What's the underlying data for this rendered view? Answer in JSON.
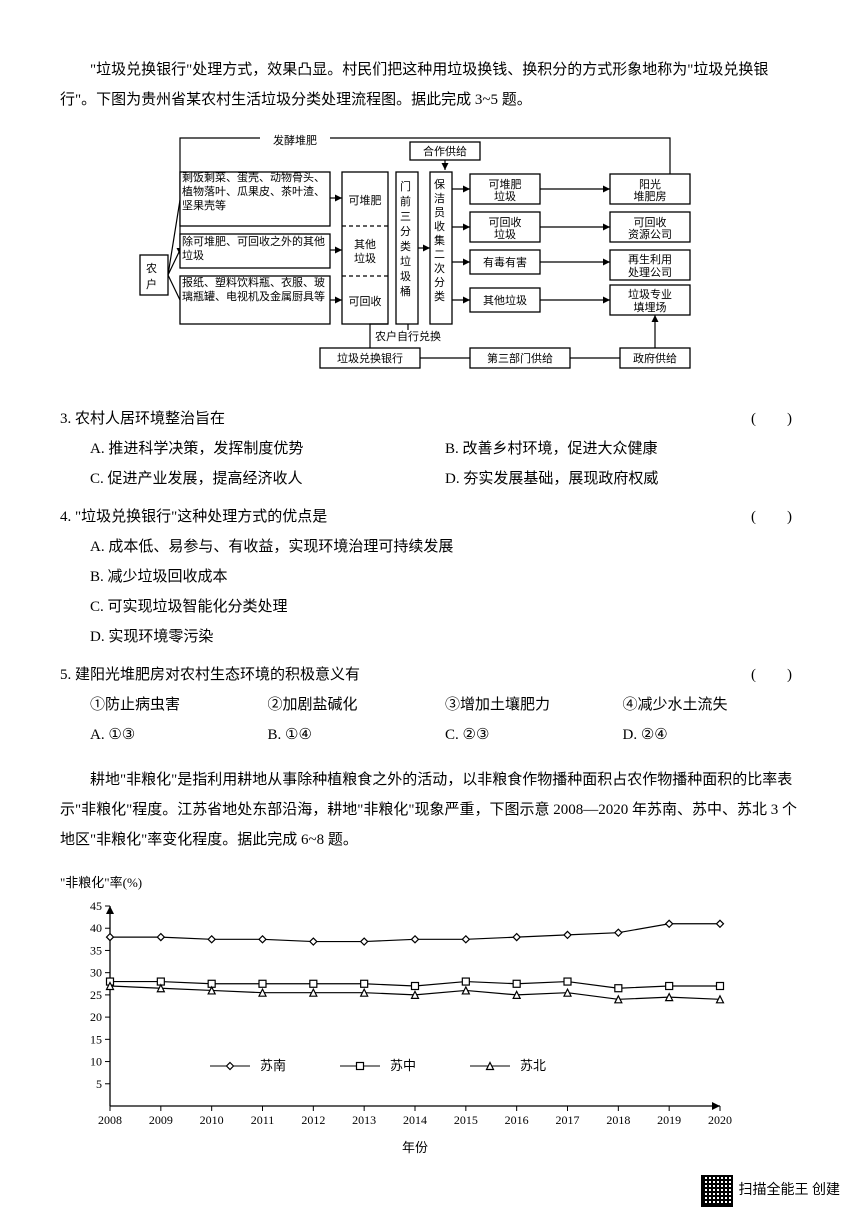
{
  "intro": {
    "p1": "\"垃圾兑换银行\"处理方式，效果凸显。村民们把这种用垃圾换钱、换积分的方式形象地称为\"垃圾兑换银行\"。下图为贵州省某农村生活垃圾分类处理流程图。据此完成 3~5 题。"
  },
  "flow": {
    "top_label": "发酵堆肥",
    "coop": "合作供给",
    "household": "农户",
    "box1": "剩饭剩菜、蛋壳、动物骨头、植物落叶、瓜果皮、茶叶渣、坚果壳等",
    "box2": "除可堆肥、可回收之外的其他垃圾",
    "box3": "报纸、塑料饮料瓶、衣服、玻璃瓶罐、电视机及金属厨具等",
    "col_compost": "可堆肥",
    "col_other": "其他垃圾",
    "col_recy": "可回收",
    "bin_title": "门前三分类垃圾桶",
    "cleaner": "保洁员收集二次分类",
    "r1": "可堆肥垃圾",
    "r1_dest": "阳光堆肥房",
    "r2": "可回收垃圾",
    "r2_dest": "可回收资源公司",
    "r3": "有毒有害",
    "r3_dest": "再生利用处理公司",
    "r4": "其他垃圾",
    "r4_dest": "垃圾专业填埋场",
    "self": "农户自行兑换",
    "bank": "垃圾兑换银行",
    "third": "第三部门供给",
    "gov": "政府供给"
  },
  "q3": {
    "stem": "3. 农村人居环境整治旨在",
    "A": "A. 推进科学决策，发挥制度优势",
    "B": "B. 改善乡村环境，促进大众健康",
    "C": "C. 促进产业发展，提高经济收人",
    "D": "D. 夯实发展基础，展现政府权威"
  },
  "q4": {
    "stem": "4. \"垃圾兑换银行\"这种处理方式的优点是",
    "A": "A. 成本低、易参与、有收益，实现环境治理可持续发展",
    "B": "B. 减少垃圾回收成本",
    "C": "C. 可实现垃圾智能化分类处理",
    "D": "D. 实现环境零污染"
  },
  "q5": {
    "stem": "5. 建阳光堆肥房对农村生态环境的积极意义有",
    "o1": "①防止病虫害",
    "o2": "②加剧盐碱化",
    "o3": "③增加土壤肥力",
    "o4": "④减少水土流失",
    "A": "A. ①③",
    "B": "B. ①④",
    "C": "C. ②③",
    "D": "D. ②④"
  },
  "passage2": {
    "p": "耕地\"非粮化\"是指利用耕地从事除种植粮食之外的活动，以非粮食作物播种面积占农作物播种面积的比率表示\"非粮化\"程度。江苏省地处东部沿海，耕地\"非粮化\"现象严重，下图示意 2008—2020 年苏南、苏中、苏北 3 个地区\"非粮化\"率变化程度。据此完成 6~8 题。"
  },
  "chart": {
    "type": "line",
    "ylabel": "\"非粮化\"率(%)",
    "xlabel": "年份",
    "years": [
      2008,
      2009,
      2010,
      2011,
      2012,
      2013,
      2014,
      2015,
      2016,
      2017,
      2018,
      2019,
      2020
    ],
    "ylim": [
      0,
      45
    ],
    "ytick_step": 5,
    "series": [
      {
        "name": "苏南",
        "marker": "diamond",
        "values": [
          38,
          38,
          37.5,
          37.5,
          37,
          37,
          37.5,
          37.5,
          38,
          38.5,
          39,
          41,
          41
        ]
      },
      {
        "name": "苏中",
        "marker": "square",
        "values": [
          28,
          28,
          27.5,
          27.5,
          27.5,
          27.5,
          27,
          28,
          27.5,
          28,
          26.5,
          27,
          27
        ]
      },
      {
        "name": "苏北",
        "marker": "triangle",
        "values": [
          27,
          26.5,
          26,
          25.5,
          25.5,
          25.5,
          25,
          26,
          25,
          25.5,
          24,
          24.5,
          24
        ]
      }
    ],
    "axis_color": "#000",
    "grid_color": "#000",
    "background": "#fff",
    "line_width": 1.2,
    "marker_size": 7,
    "font_size": 12
  },
  "footer": "扫描全能王  创建"
}
